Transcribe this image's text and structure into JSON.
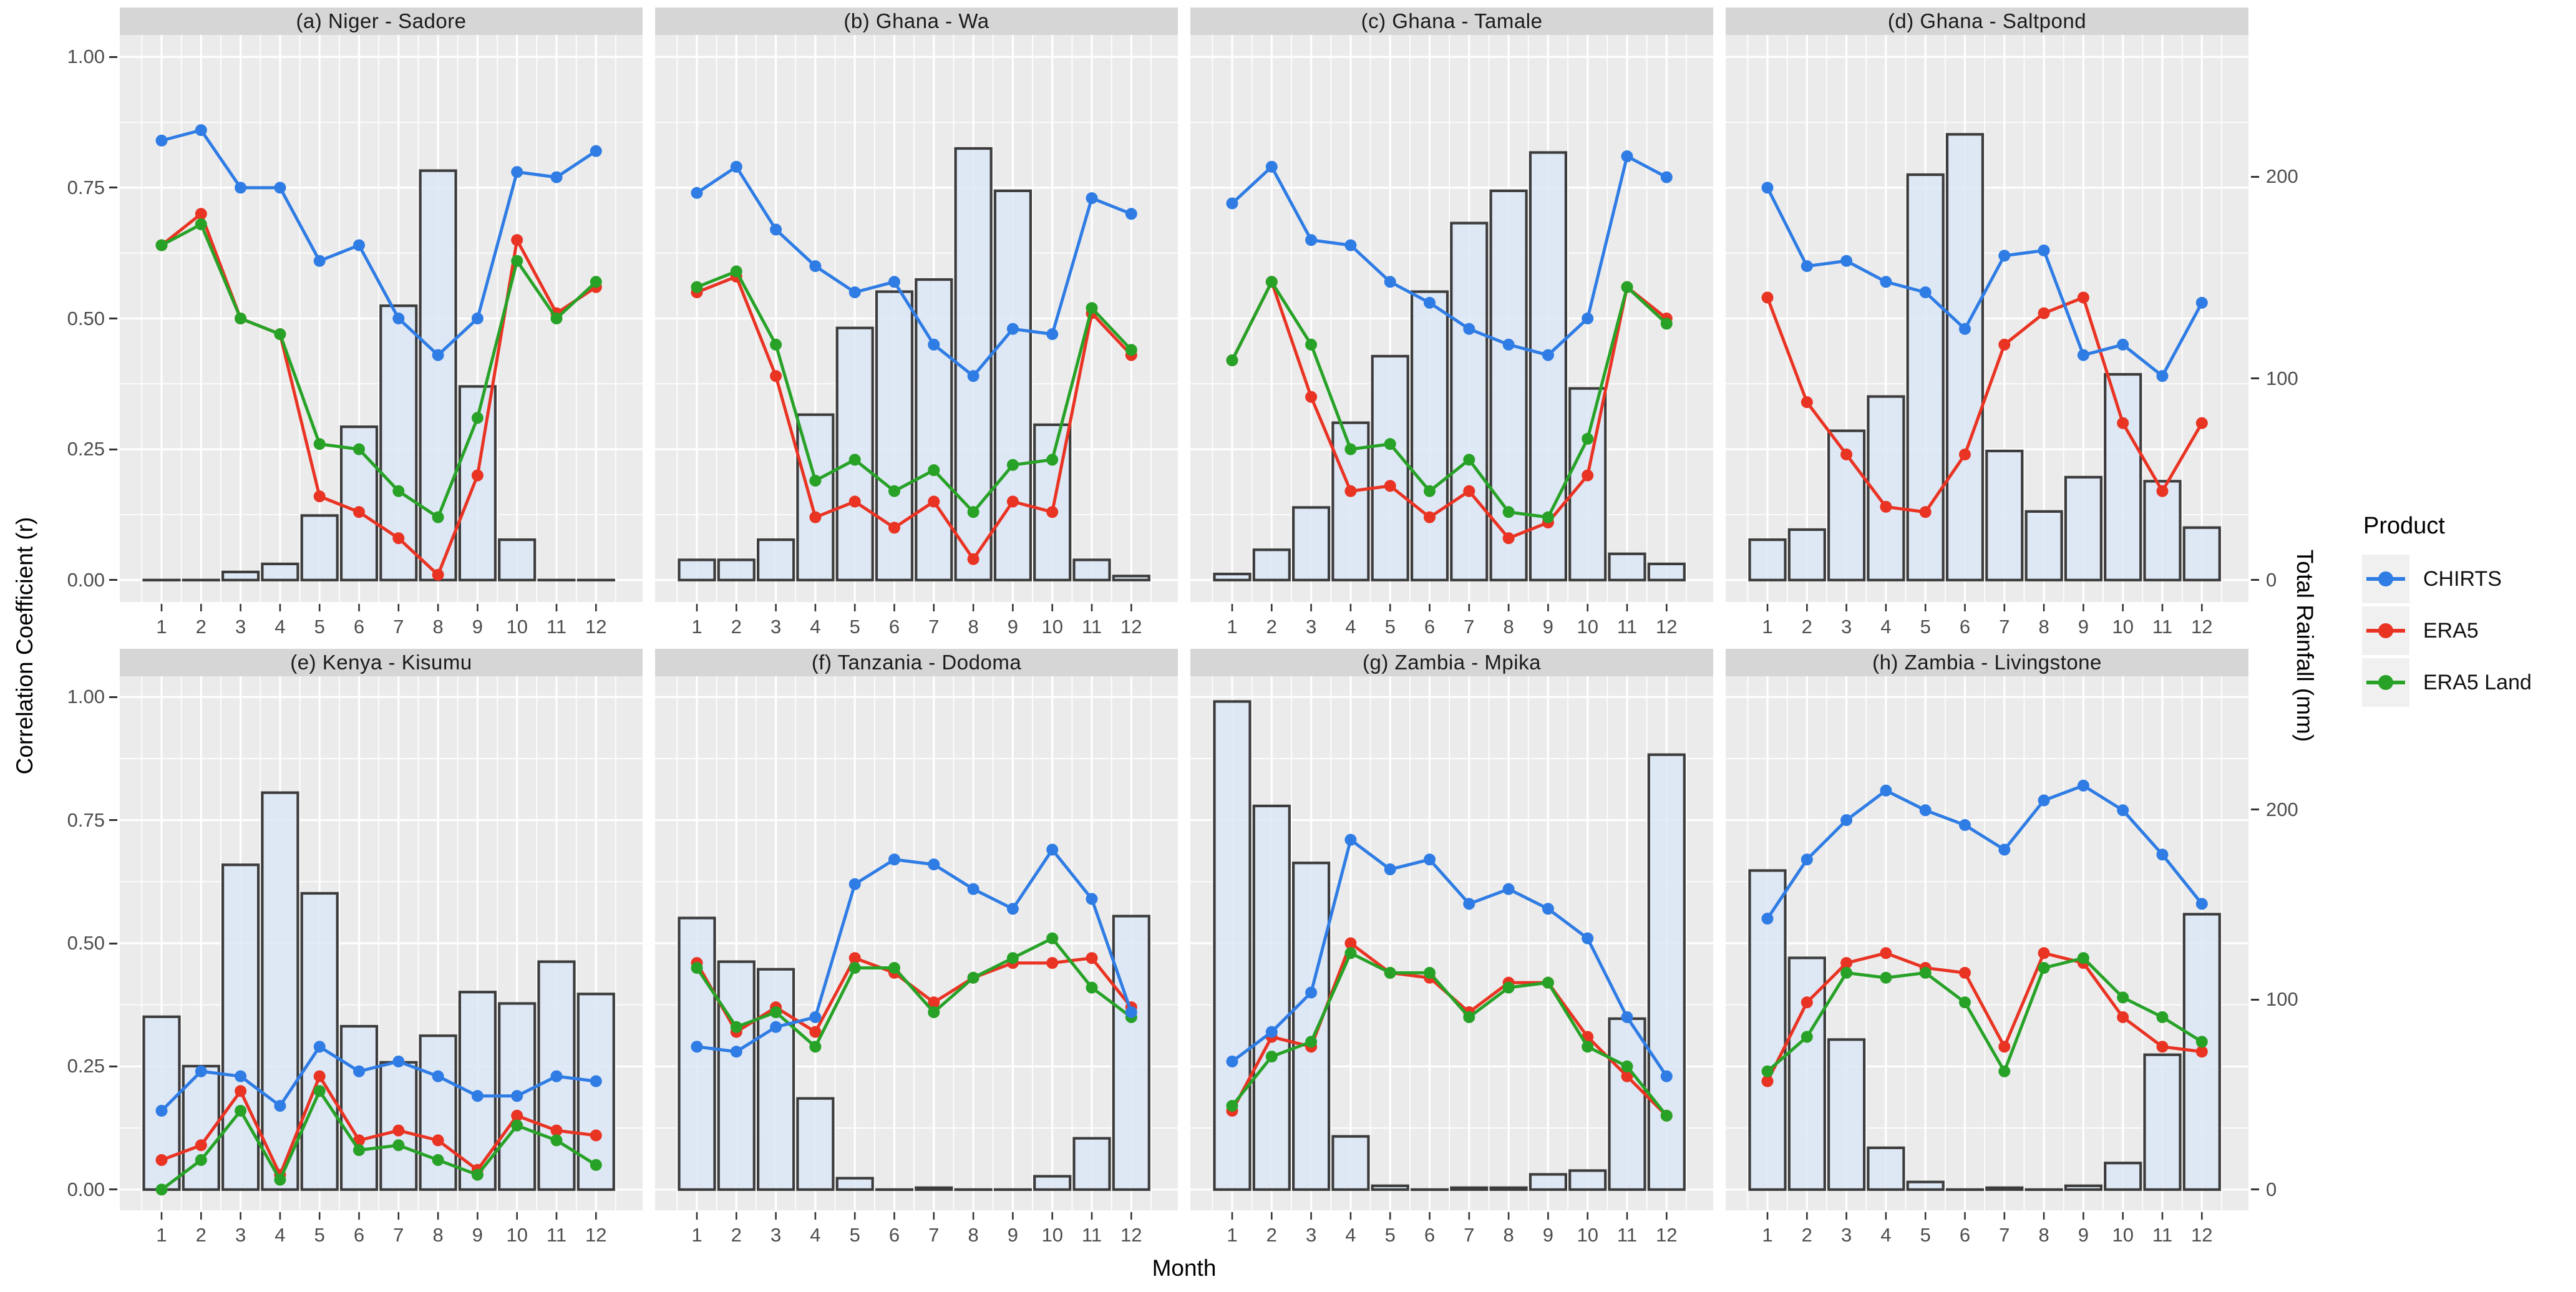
{
  "axes": {
    "left_title": "Correlation Coefficient (r)",
    "right_title": "Total Rainfall (mm)",
    "x_title": "Month",
    "left_ticks": [
      {
        "label": "1.00",
        "r": 1.0
      },
      {
        "label": "0.75",
        "r": 0.75
      },
      {
        "label": "0.50",
        "r": 0.5
      },
      {
        "label": "0.25",
        "r": 0.25
      },
      {
        "label": "0.00",
        "r": 0.0
      }
    ],
    "right_ticks": [
      {
        "label": "200",
        "mm": 200
      },
      {
        "label": "100",
        "mm": 100
      },
      {
        "label": "0",
        "mm": 0
      }
    ],
    "x_ticks": [
      "1",
      "2",
      "3",
      "4",
      "5",
      "6",
      "7",
      "8",
      "9",
      "10",
      "11",
      "12"
    ],
    "left_range": [
      0.0,
      1.0
    ],
    "right_range_mm": [
      0,
      260
    ],
    "grid": "white major and minor gridlines on gray panel"
  },
  "legend": {
    "title": "Product",
    "entries": [
      {
        "label": "CHIRTS",
        "series": "chirts"
      },
      {
        "label": "ERA5",
        "series": "era5"
      },
      {
        "label": "ERA5 Land",
        "series": "era5_land"
      }
    ]
  },
  "colors": {
    "chirts": "#2E7CE4",
    "era5": "#E93323",
    "era5_land": "#27A227",
    "bar_fill": "#DAE5F5",
    "bar_stroke": "#3C3C3C",
    "panel_bg": "#EBEBEB",
    "grid": "#FFFFFF",
    "strip_bg": "#D6D6D6",
    "tick_text": "#4D4D4D"
  },
  "chart_data": {
    "type": "bar",
    "subtype": "faceted dual-axis: monthly rainfall bars + correlation line series",
    "categories": [
      1,
      2,
      3,
      4,
      5,
      6,
      7,
      8,
      9,
      10,
      11,
      12
    ],
    "mm_per_r_unit": 259.4,
    "facets": [
      {
        "id": "a",
        "title": "(a) Niger - Sadore",
        "rainfall_mm": [
          0,
          0,
          4,
          8,
          32,
          76,
          136,
          203,
          96,
          20,
          0,
          0
        ],
        "chirts": [
          0.84,
          0.86,
          0.75,
          0.75,
          0.61,
          0.64,
          0.5,
          0.43,
          0.5,
          0.78,
          0.77,
          0.82
        ],
        "era5": [
          0.64,
          0.7,
          0.5,
          0.47,
          0.16,
          0.13,
          0.08,
          0.01,
          0.2,
          0.65,
          0.51,
          0.56
        ],
        "era5_land": [
          0.64,
          0.68,
          0.5,
          0.47,
          0.26,
          0.25,
          0.17,
          0.12,
          0.31,
          0.61,
          0.5,
          0.57
        ]
      },
      {
        "id": "b",
        "title": "(b) Ghana - Wa",
        "rainfall_mm": [
          10,
          10,
          20,
          82,
          125,
          143,
          149,
          214,
          193,
          77,
          10,
          2
        ],
        "chirts": [
          0.74,
          0.79,
          0.67,
          0.6,
          0.55,
          0.57,
          0.45,
          0.39,
          0.48,
          0.47,
          0.73,
          0.7
        ],
        "era5": [
          0.55,
          0.58,
          0.39,
          0.12,
          0.15,
          0.1,
          0.15,
          0.04,
          0.15,
          0.13,
          0.51,
          0.43
        ],
        "era5_land": [
          0.56,
          0.59,
          0.45,
          0.19,
          0.23,
          0.17,
          0.21,
          0.13,
          0.22,
          0.23,
          0.52,
          0.44
        ]
      },
      {
        "id": "c",
        "title": "(c) Ghana - Tamale",
        "rainfall_mm": [
          3,
          15,
          36,
          78,
          111,
          143,
          177,
          193,
          212,
          95,
          13,
          8
        ],
        "chirts": [
          0.72,
          0.79,
          0.65,
          0.64,
          0.57,
          0.53,
          0.48,
          0.45,
          0.43,
          0.5,
          0.81,
          0.77
        ],
        "era5": [
          0.42,
          0.57,
          0.35,
          0.17,
          0.18,
          0.12,
          0.17,
          0.08,
          0.11,
          0.2,
          0.56,
          0.5
        ],
        "era5_land": [
          0.42,
          0.57,
          0.45,
          0.25,
          0.26,
          0.17,
          0.23,
          0.13,
          0.12,
          0.27,
          0.56,
          0.49
        ]
      },
      {
        "id": "d",
        "title": "(d) Ghana - Saltpond",
        "rainfall_mm": [
          20,
          25,
          74,
          91,
          201,
          221,
          64,
          34,
          51,
          102,
          49,
          26
        ],
        "chirts": [
          0.75,
          0.6,
          0.61,
          0.57,
          0.55,
          0.48,
          0.62,
          0.63,
          0.43,
          0.45,
          0.39,
          0.53
        ],
        "era5": [
          0.54,
          0.34,
          0.24,
          0.14,
          0.13,
          0.24,
          0.45,
          0.51,
          0.54,
          0.3,
          0.17,
          0.3
        ],
        "era5_land": null
      },
      {
        "id": "e",
        "title": "(e) Kenya - Kisumu",
        "rainfall_mm": [
          91,
          65,
          171,
          209,
          156,
          86,
          67,
          81,
          104,
          98,
          120,
          103
        ],
        "chirts": [
          0.16,
          0.24,
          0.23,
          0.17,
          0.29,
          0.24,
          0.26,
          0.23,
          0.19,
          0.19,
          0.23,
          0.22
        ],
        "era5": [
          0.06,
          0.09,
          0.2,
          0.03,
          0.23,
          0.1,
          0.12,
          0.1,
          0.04,
          0.15,
          0.12,
          0.11
        ],
        "era5_land": [
          0.0,
          0.06,
          0.16,
          0.02,
          0.2,
          0.08,
          0.09,
          0.06,
          0.03,
          0.13,
          0.1,
          0.05
        ]
      },
      {
        "id": "f",
        "title": "(f) Tanzania - Dodoma",
        "rainfall_mm": [
          143,
          120,
          116,
          48,
          6,
          0,
          1,
          0,
          0,
          7,
          27,
          144
        ],
        "chirts": [
          0.29,
          0.28,
          0.33,
          0.35,
          0.62,
          0.67,
          0.66,
          0.61,
          0.57,
          0.69,
          0.59,
          0.36
        ],
        "era5": [
          0.46,
          0.32,
          0.37,
          0.32,
          0.47,
          0.44,
          0.38,
          0.43,
          0.46,
          0.46,
          0.47,
          0.37
        ],
        "era5_land": [
          0.45,
          0.33,
          0.36,
          0.29,
          0.45,
          0.45,
          0.36,
          0.43,
          0.47,
          0.51,
          0.41,
          0.35
        ]
      },
      {
        "id": "g",
        "title": "(g) Zambia - Mpika",
        "rainfall_mm": [
          257,
          202,
          172,
          28,
          2,
          0,
          1,
          1,
          8,
          10,
          90,
          229
        ],
        "chirts": [
          0.26,
          0.32,
          0.4,
          0.71,
          0.65,
          0.67,
          0.58,
          0.61,
          0.57,
          0.51,
          0.35,
          0.23
        ],
        "era5": [
          0.16,
          0.31,
          0.29,
          0.5,
          0.44,
          0.43,
          0.36,
          0.42,
          0.42,
          0.31,
          0.23,
          0.15
        ],
        "era5_land": [
          0.17,
          0.27,
          0.3,
          0.48,
          0.44,
          0.44,
          0.35,
          0.41,
          0.42,
          0.29,
          0.25,
          0.15
        ]
      },
      {
        "id": "h",
        "title": "(h) Zambia - Livingstone",
        "rainfall_mm": [
          168,
          122,
          79,
          22,
          4,
          0,
          1,
          0,
          2,
          14,
          71,
          145
        ],
        "chirts": [
          0.55,
          0.67,
          0.75,
          0.81,
          0.77,
          0.74,
          0.69,
          0.79,
          0.82,
          0.77,
          0.68,
          0.58
        ],
        "era5": [
          0.22,
          0.38,
          0.46,
          0.48,
          0.45,
          0.44,
          0.29,
          0.48,
          0.46,
          0.35,
          0.29,
          0.28
        ],
        "era5_land": [
          0.24,
          0.31,
          0.44,
          0.43,
          0.44,
          0.38,
          0.24,
          0.45,
          0.47,
          0.39,
          0.35,
          0.3
        ]
      }
    ]
  }
}
